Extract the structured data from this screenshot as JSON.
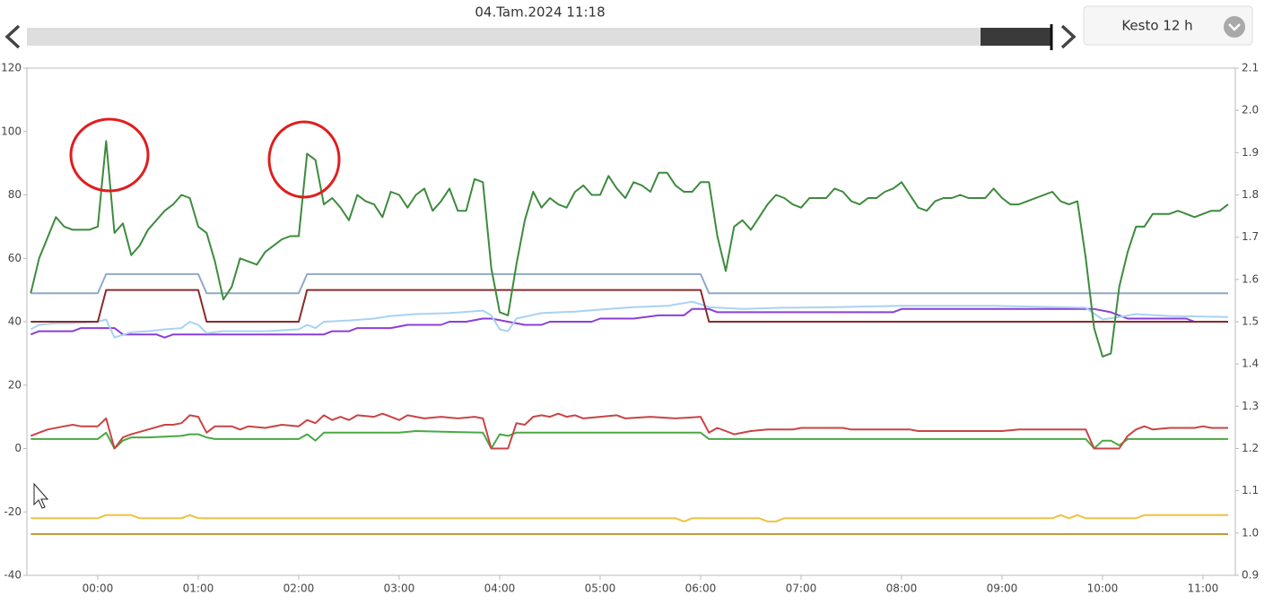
{
  "header": {
    "timestamp": "04.Tam.2024 11:18",
    "duration_button": "Kesto 12 h"
  },
  "chart_data": {
    "type": "line",
    "xlim": [
      -42.3,
      679.3
    ],
    "xticks": [
      {
        "value": 0,
        "label": "00:00"
      },
      {
        "value": 60,
        "label": "01:00"
      },
      {
        "value": 120,
        "label": "02:00"
      },
      {
        "value": 180,
        "label": "03:00"
      },
      {
        "value": 240,
        "label": "04:00"
      },
      {
        "value": 300,
        "label": "05:00"
      },
      {
        "value": 360,
        "label": "06:00"
      },
      {
        "value": 420,
        "label": "07:00"
      },
      {
        "value": 480,
        "label": "08:00"
      },
      {
        "value": 540,
        "label": "09:00"
      },
      {
        "value": 600,
        "label": "10:00"
      },
      {
        "value": 660,
        "label": "11:00"
      }
    ],
    "ylim": [
      -40,
      120
    ],
    "yticks": [
      -40,
      -20,
      0,
      20,
      40,
      60,
      80,
      100,
      120
    ],
    "y2lim": [
      0.9,
      2.1
    ],
    "y2ticks": [
      0.9,
      {
        "value": 1,
        "label": "1.0"
      },
      1.1,
      1.2,
      1.3,
      1.4,
      1.5,
      1.6,
      1.7,
      1.8,
      1.9,
      {
        "value": 2,
        "label": "2.0"
      },
      2.1
    ],
    "grid": false,
    "series": [
      {
        "color": "#3d8b3d",
        "x": [
          -40,
          -35,
          -25,
          -20,
          -15,
          -5,
          0,
          5,
          10,
          15,
          20,
          25,
          30,
          40,
          45,
          50,
          55,
          60,
          65,
          70,
          75,
          80,
          85,
          90,
          95,
          100,
          105,
          110,
          115,
          120,
          125,
          130,
          135,
          140,
          145,
          150,
          155,
          160,
          165,
          170,
          175,
          180,
          185,
          190,
          195,
          200,
          205,
          210,
          215,
          220,
          225,
          230,
          235,
          240,
          245,
          250,
          255,
          260,
          265,
          270,
          275,
          280,
          285,
          290,
          295,
          300,
          305,
          310,
          315,
          320,
          325,
          330,
          335,
          340,
          345,
          350,
          355,
          360,
          365,
          370,
          375,
          380,
          385,
          390,
          395,
          400,
          405,
          410,
          415,
          420,
          425,
          435,
          440,
          445,
          450,
          455,
          460,
          465,
          470,
          475,
          480,
          485,
          490,
          495,
          500,
          505,
          510,
          515,
          520,
          530,
          535,
          540,
          545,
          550,
          570,
          575,
          580,
          585,
          590,
          595,
          600,
          605,
          610,
          615,
          620,
          625,
          630,
          640,
          645,
          650,
          655,
          660,
          665,
          670,
          675
        ],
        "values": [
          49,
          60,
          73,
          70,
          69,
          69,
          70,
          97,
          68,
          71,
          61,
          64,
          69,
          75,
          77,
          80,
          79,
          70,
          68,
          59,
          47,
          51,
          60,
          59,
          58,
          62,
          64,
          66,
          67,
          67,
          93,
          91,
          77,
          79,
          76,
          72,
          80,
          78,
          77,
          73,
          81,
          80,
          76,
          80,
          82,
          75,
          78,
          82,
          75,
          75,
          85,
          84,
          57,
          43,
          42,
          58,
          72,
          81,
          76,
          79,
          77,
          76,
          81,
          83,
          80,
          80,
          86,
          82,
          79,
          84,
          83,
          81,
          87,
          87,
          83,
          81,
          81,
          84,
          84,
          67,
          56,
          70,
          72,
          69,
          73,
          77,
          80,
          79,
          77,
          76,
          79,
          79,
          82,
          81,
          78,
          77,
          79,
          79,
          81,
          82,
          84,
          80,
          76,
          75,
          78,
          79,
          79,
          80,
          79,
          79,
          82,
          79,
          77,
          77,
          81,
          78,
          77,
          78,
          60,
          38,
          29,
          30,
          51,
          62,
          70,
          70,
          74,
          74,
          75,
          74,
          73,
          74,
          75,
          75,
          77
        ]
      },
      {
        "color": "#8eaac8",
        "x": [
          -40,
          0,
          5,
          60,
          65,
          120,
          125,
          360,
          365,
          675
        ],
        "values": [
          49,
          49,
          55,
          55,
          49,
          49,
          55,
          55,
          49,
          49
        ]
      },
      {
        "color": "#8b2a2a",
        "x": [
          -40,
          0,
          5,
          60,
          65,
          120,
          125,
          360,
          365,
          675
        ],
        "values": [
          40,
          40,
          50,
          50,
          40,
          40,
          50,
          50,
          40,
          40
        ]
      },
      {
        "color": "#a9d2f2",
        "x": [
          -40,
          -35,
          -25,
          -15,
          0,
          5,
          10,
          20,
          30,
          40,
          50,
          55,
          60,
          65,
          75,
          100,
          120,
          125,
          130,
          135,
          150,
          165,
          175,
          190,
          210,
          230,
          235,
          240,
          245,
          250,
          265,
          285,
          305,
          320,
          340,
          355,
          360,
          365,
          385,
          410,
          440,
          480,
          535,
          590,
          600,
          610,
          620,
          640,
          675
        ],
        "values": [
          37.6,
          39,
          39.5,
          39.5,
          40,
          40.7,
          35,
          36.7,
          37,
          37.6,
          38,
          40,
          39,
          36.4,
          37,
          37,
          37.6,
          39,
          38,
          40,
          40.4,
          41,
          41.8,
          42.4,
          42.7,
          43.5,
          42,
          37.6,
          37,
          41,
          42.7,
          43.2,
          44,
          44.6,
          45,
          46.3,
          45.5,
          44.6,
          44,
          44.4,
          44.6,
          45,
          45,
          44.4,
          40.7,
          41.5,
          42.4,
          41.8,
          41.5
        ]
      },
      {
        "color": "#8a3fd8",
        "x": [
          -40,
          -35,
          -15,
          -10,
          10,
          15,
          35,
          40,
          45,
          120,
          135,
          140,
          150,
          155,
          175,
          185,
          205,
          210,
          220,
          230,
          235,
          245,
          255,
          265,
          270,
          295,
          300,
          320,
          335,
          350,
          355,
          365,
          370,
          475,
          480,
          595,
          605,
          615,
          650,
          655,
          675
        ],
        "values": [
          36,
          37,
          37,
          38,
          38,
          36,
          36,
          35,
          36,
          36,
          36,
          37,
          37,
          38,
          38,
          39,
          39,
          40,
          40,
          41,
          41,
          40,
          39,
          39,
          40,
          40,
          41,
          41,
          42,
          42,
          44,
          44,
          43,
          43,
          44,
          44,
          43,
          41,
          41,
          40,
          40
        ]
      },
      {
        "color": "#c84444",
        "x": [
          -40,
          -35,
          -30,
          -20,
          -15,
          -10,
          -5,
          0,
          5,
          10,
          15,
          20,
          30,
          40,
          45,
          50,
          55,
          60,
          65,
          70,
          80,
          85,
          90,
          100,
          110,
          120,
          125,
          130,
          135,
          140,
          145,
          150,
          155,
          165,
          170,
          175,
          180,
          185,
          195,
          205,
          215,
          225,
          230,
          235,
          245,
          250,
          255,
          260,
          265,
          270,
          275,
          280,
          285,
          290,
          300,
          310,
          315,
          330,
          345,
          360,
          365,
          370,
          375,
          380,
          390,
          400,
          415,
          420,
          445,
          450,
          485,
          490,
          540,
          550,
          590,
          595,
          610,
          615,
          620,
          625,
          630,
          640,
          655,
          660,
          665,
          675
        ],
        "values": [
          4,
          5,
          6,
          7,
          7.5,
          7,
          7,
          7,
          9.5,
          0,
          3.5,
          4.5,
          6,
          7.5,
          7.5,
          8,
          10.5,
          10,
          5,
          7,
          7,
          6,
          7,
          6.5,
          7.5,
          7,
          9,
          8,
          10.5,
          9,
          10,
          9,
          10.5,
          10,
          11,
          10,
          9,
          10.5,
          9.5,
          10,
          9.5,
          10,
          9.5,
          0,
          0,
          8,
          7.5,
          10,
          10.5,
          10,
          11,
          10,
          10.5,
          9.5,
          10,
          10.5,
          9.5,
          10,
          9.5,
          10,
          5,
          6.5,
          5.5,
          4.5,
          5.5,
          6,
          6,
          6.5,
          6.5,
          6,
          6,
          5.5,
          5.5,
          6,
          6,
          0,
          0,
          4,
          6,
          7,
          6,
          6.5,
          6.5,
          7,
          6.5,
          6.5
        ]
      },
      {
        "color": "#4aa844",
        "x": [
          -40,
          0,
          5,
          10,
          15,
          20,
          30,
          50,
          55,
          60,
          65,
          70,
          120,
          125,
          130,
          135,
          140,
          180,
          190,
          230,
          235,
          240,
          245,
          250,
          270,
          360,
          365,
          590,
          595,
          600,
          605,
          610,
          615,
          675
        ],
        "values": [
          3,
          3,
          5,
          0,
          2.5,
          3.5,
          3.5,
          4,
          4.5,
          4.5,
          3.5,
          3,
          3,
          4.5,
          2.5,
          5,
          5,
          5,
          5.5,
          5,
          0,
          4.5,
          4,
          5,
          5,
          5,
          3,
          3,
          0,
          2.5,
          2.5,
          1,
          3,
          3
        ]
      },
      {
        "color": "#f0c040",
        "x": [
          -40,
          0,
          5,
          10,
          20,
          25,
          50,
          55,
          60,
          345,
          350,
          355,
          395,
          400,
          405,
          410,
          570,
          575,
          580,
          585,
          590,
          620,
          625,
          675
        ],
        "values": [
          -22,
          -22,
          -21,
          -21,
          -21,
          -22,
          -22,
          -21,
          -22,
          -22,
          -23,
          -22,
          -22,
          -23,
          -23,
          -22,
          -22,
          -21,
          -22,
          -21,
          -22,
          -22,
          -21,
          -21
        ]
      },
      {
        "color": "#c49a3a",
        "x": [
          -40,
          675
        ],
        "values": [
          -27,
          -27
        ]
      }
    ]
  }
}
